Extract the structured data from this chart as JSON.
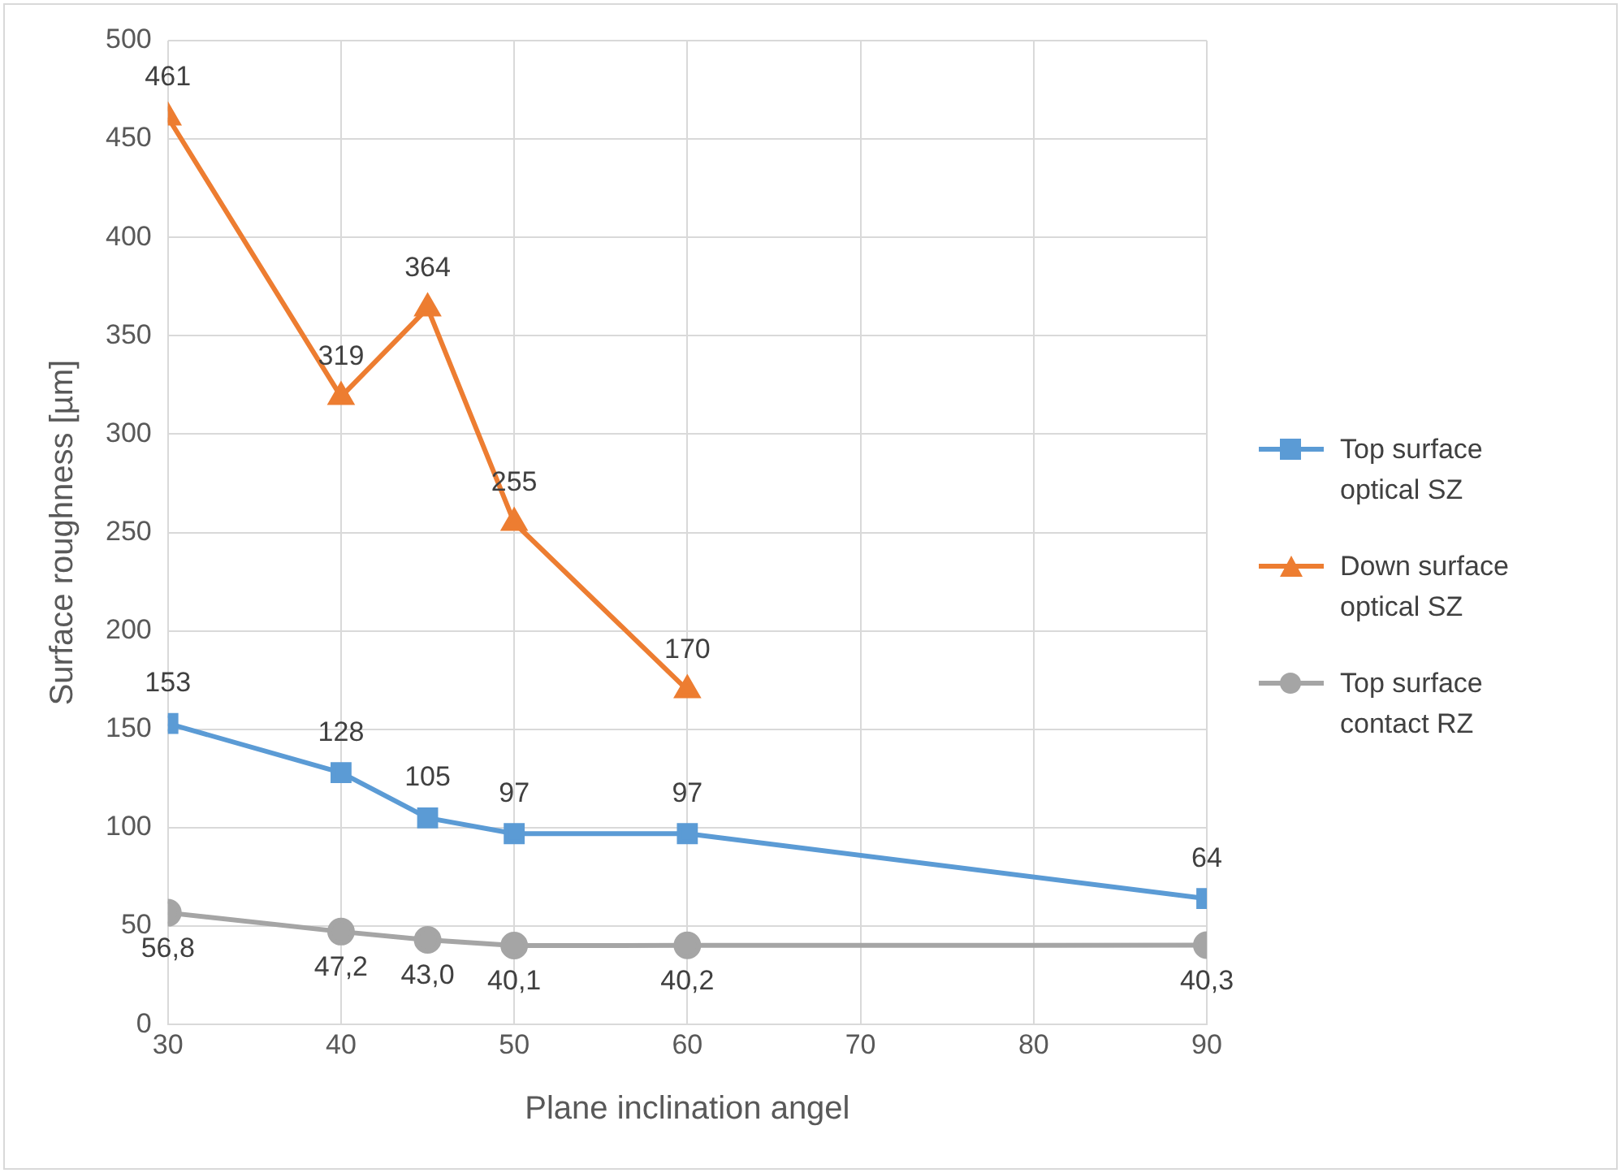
{
  "chart_data": {
    "type": "line",
    "xlabel": "Plane inclination angel",
    "ylabel": "Surface roughness [µm]",
    "xlim": [
      30,
      90
    ],
    "xticks": [
      30,
      40,
      50,
      60,
      70,
      80,
      90
    ],
    "ylim": [
      0,
      500
    ],
    "yticks": [
      0,
      50,
      100,
      150,
      200,
      250,
      300,
      350,
      400,
      450,
      500
    ],
    "grid": true,
    "legend": "right",
    "line_style": "solid",
    "series": [
      {
        "name": "Top surface optical SZ",
        "color": "#5b9bd5",
        "marker": "square",
        "x": [
          30,
          40,
          45,
          50,
          60,
          90
        ],
        "values": [
          153,
          128,
          105,
          97,
          97,
          64
        ],
        "value_labels": [
          "153",
          "128",
          "105",
          "97",
          "97",
          "64"
        ]
      },
      {
        "name": "Down surface optical SZ",
        "color": "#ed7d31",
        "marker": "triangle",
        "x": [
          30,
          40,
          45,
          50,
          60
        ],
        "values": [
          461,
          319,
          364,
          255,
          170
        ],
        "value_labels": [
          "461",
          "319",
          "364",
          "255",
          "170"
        ]
      },
      {
        "name": "Top surface contact RZ",
        "color": "#a5a5a5",
        "marker": "circle",
        "x": [
          30,
          40,
          45,
          50,
          60,
          90
        ],
        "values": [
          56.8,
          47.2,
          43.0,
          40.1,
          40.2,
          40.3
        ],
        "value_labels": [
          "56,8",
          "47,2",
          "43,0",
          "40,1",
          "40,2",
          "40,3"
        ]
      }
    ]
  }
}
